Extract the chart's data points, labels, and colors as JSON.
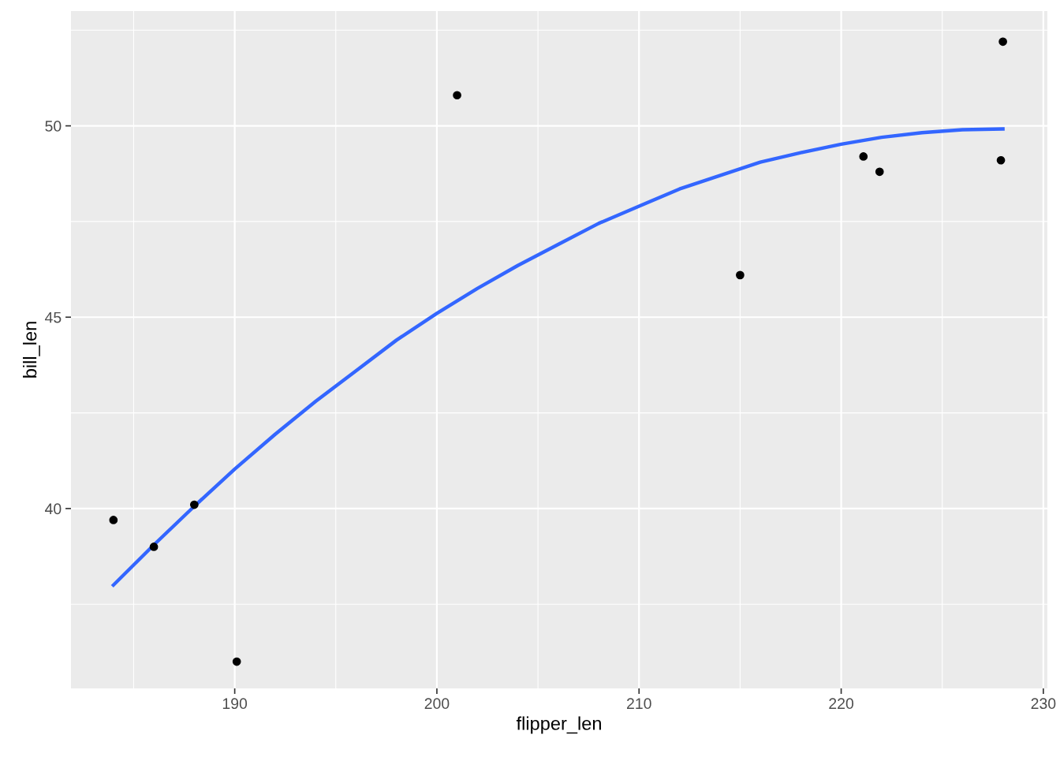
{
  "chart_data": {
    "type": "scatter",
    "xlabel": "flipper_len",
    "ylabel": "bill_len",
    "xlim": [
      181.9,
      230.2
    ],
    "ylim": [
      35.3,
      53.0
    ],
    "xticks": [
      190,
      200,
      210,
      220,
      230
    ],
    "yticks": [
      40,
      45,
      50
    ],
    "grid": true,
    "marker": "circle",
    "series": [
      {
        "color": "#000000",
        "x": [
          184,
          186,
          188,
          190.1,
          201,
          215,
          221.1,
          221.9,
          227.9,
          228
        ],
        "values": [
          39.7,
          39.0,
          40.1,
          36.0,
          50.8,
          46.1,
          49.2,
          48.8,
          49.1,
          52.2
        ]
      },
      {
        "type": "line",
        "color": "#3366ff",
        "marker": "none",
        "x": [
          184,
          186,
          188,
          190,
          192,
          194,
          196,
          198,
          200,
          202,
          204,
          206,
          208,
          210,
          212,
          214,
          216,
          218,
          220,
          222,
          224,
          226,
          228
        ],
        "values": [
          38.0,
          39.05,
          40.06,
          41.03,
          41.94,
          42.8,
          43.6,
          44.4,
          45.1,
          45.75,
          46.35,
          46.9,
          47.45,
          47.9,
          48.35,
          48.7,
          49.05,
          49.3,
          49.52,
          49.7,
          49.82,
          49.9,
          49.92
        ]
      }
    ]
  }
}
